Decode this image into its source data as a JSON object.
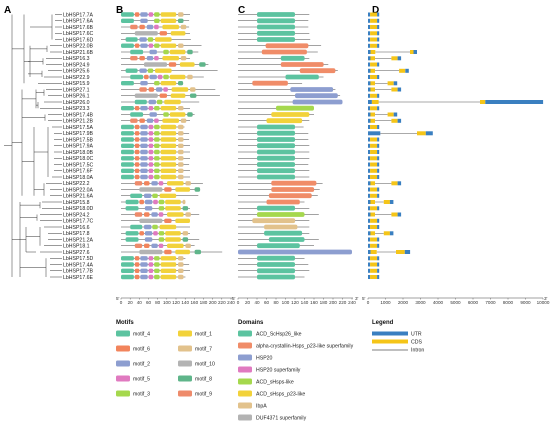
{
  "panels": [
    "A",
    "B",
    "C",
    "D"
  ],
  "genes": [
    "LbHSP17.7A",
    "LbHSP17.6A",
    "LbHSP17.6B",
    "LbHSP17.6C",
    "LbHSP17.6D",
    "LbHSP22.0B",
    "LbHSP21.6B",
    "LbHSP16.3",
    "LbHSP24.9",
    "LbHSP25.6",
    "LbHSP22.9",
    "LbHSP15.9",
    "LbHSP27.1",
    "LbHSP26.1",
    "LbHSP26.0",
    "LbHSP23.3",
    "LbHSP17.4B",
    "LbHSP21.2B",
    "LbHSP17.5A",
    "LbHSP17.9B",
    "LbHSP17.5B",
    "LbHSP17.9A",
    "LbHSP18.0B",
    "LbHSP18.0C",
    "LbHSP17.5C",
    "LbHSP17.6F",
    "LbHSP18.0A",
    "LbHSP22.2",
    "LbHSP22.0A",
    "LbHSP21.6A",
    "LbHSP15.8",
    "LbHSP18.0D",
    "LbHSP24.2",
    "LbHSP17.7C",
    "LbHSP16.6",
    "LbHSP17.8",
    "LbHSP21.2A",
    "LbHSP18.1",
    "LbHSP27.6",
    "LbHSP17.5D",
    "LbHSP17.4A",
    "LbHSP17.7B",
    "LbHSP17.6E"
  ],
  "axes": {
    "motif_ticks": [
      "0",
      "20",
      "40",
      "60",
      "80",
      "100",
      "120",
      "140",
      "160",
      "180",
      "200",
      "220",
      "240"
    ],
    "domain_ticks": [
      "0",
      "20",
      "40",
      "60",
      "80",
      "100",
      "120",
      "140",
      "160",
      "180",
      "200",
      "220",
      "240"
    ],
    "gene_ticks": [
      "0",
      "1000",
      "2000",
      "3000",
      "4000",
      "5000",
      "6000",
      "7000",
      "8000",
      "9000",
      "10000"
    ],
    "motif_axis_end": "5'",
    "domain_axis_start": "5'",
    "domain_axis_end": "3'",
    "gene_axis_start": "5'",
    "gene_axis_end": "3'"
  },
  "motif_legend": {
    "title": "Motifs",
    "items": [
      {
        "name": "motif_4",
        "color": "#5cc3a0"
      },
      {
        "name": "motif_1",
        "color": "#f2d23a"
      },
      {
        "name": "motif_6",
        "color": "#f2845c"
      },
      {
        "name": "motif_7",
        "color": "#e2c28c"
      },
      {
        "name": "motif_2",
        "color": "#8d9ed0"
      },
      {
        "name": "motif_10",
        "color": "#b3b3b3"
      },
      {
        "name": "motif_5",
        "color": "#e07ac0"
      },
      {
        "name": "motif_8",
        "color": "#5fb58a"
      },
      {
        "name": "motif_3",
        "color": "#a5d84d"
      },
      {
        "name": "motif_9",
        "color": "#ee8b6b"
      }
    ]
  },
  "domain_legend": {
    "title": "Domains",
    "items": [
      {
        "name": "ACD_ScHsp26_like",
        "color": "#5cc3a0"
      },
      {
        "name": "alpha-crystallin-Hsps_p23-like superfamily",
        "color": "#f08c68"
      },
      {
        "name": "HSP20",
        "color": "#8d9ed0"
      },
      {
        "name": "HSP20 superfamily",
        "color": "#e07ac0"
      },
      {
        "name": "ACD_sHsps-like",
        "color": "#a5d84d"
      },
      {
        "name": "ACD_sHsps_p23-like",
        "color": "#f2d23a"
      },
      {
        "name": "IbpA",
        "color": "#e2c28c"
      },
      {
        "name": "DUF4371 superfamily",
        "color": "#b3b3b3"
      }
    ]
  },
  "gene_legend": {
    "title": "Legend",
    "items": [
      {
        "name": "UTR",
        "color": "#3a7fc0"
      },
      {
        "name": "CDS",
        "color": "#f5c518"
      },
      {
        "name": "Intron",
        "color": "#555555"
      }
    ]
  }
}
